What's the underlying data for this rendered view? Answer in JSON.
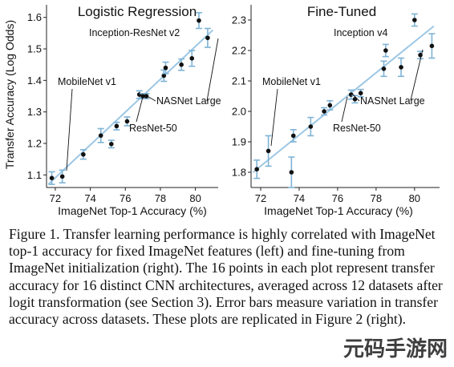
{
  "chart_data": [
    {
      "type": "scatter",
      "title": "Logistic Regression",
      "xlabel": "ImageNet Top-1 Accuracy (%)",
      "ylabel": "Transfer Accuracy (Log Odds)",
      "xlim": [
        71.5,
        81.3
      ],
      "ylim": [
        1.06,
        1.64
      ],
      "xticks": [
        72,
        74,
        76,
        78,
        80
      ],
      "yticks": [
        1.1,
        1.2,
        1.3,
        1.4,
        1.5,
        1.6
      ],
      "ytick_labels": [
        "1.1",
        "1.2",
        "1.3",
        "1.4",
        "1.5",
        "1.6"
      ],
      "grid": false,
      "fit_line": {
        "x": [
          71.6,
          81.0
        ],
        "y": [
          1.07,
          1.56
        ]
      },
      "points": [
        {
          "x": 71.8,
          "y": 1.09,
          "err": 0.02
        },
        {
          "x": 72.4,
          "y": 1.095,
          "err": 0.02
        },
        {
          "x": 73.6,
          "y": 1.165,
          "err": 0.015
        },
        {
          "x": 74.6,
          "y": 1.225,
          "err": 0.022
        },
        {
          "x": 75.2,
          "y": 1.198,
          "err": 0.012
        },
        {
          "x": 75.5,
          "y": 1.255,
          "err": 0.012
        },
        {
          "x": 76.1,
          "y": 1.27,
          "err": 0.014
        },
        {
          "x": 76.8,
          "y": 1.355,
          "err": 0.012
        },
        {
          "x": 77.0,
          "y": 1.35,
          "err": 0.008
        },
        {
          "x": 77.2,
          "y": 1.35,
          "err": 0.008
        },
        {
          "x": 78.2,
          "y": 1.415,
          "err": 0.018
        },
        {
          "x": 78.3,
          "y": 1.44,
          "err": 0.018
        },
        {
          "x": 79.2,
          "y": 1.45,
          "err": 0.018
        },
        {
          "x": 79.8,
          "y": 1.47,
          "err": 0.025
        },
        {
          "x": 80.2,
          "y": 1.59,
          "err": 0.025
        },
        {
          "x": 80.7,
          "y": 1.535,
          "err": 0.03
        }
      ],
      "annotations": [
        {
          "text": "Inception-ResNet v2"
        },
        {
          "text": "MobileNet v1"
        },
        {
          "text": "NASNet Large"
        },
        {
          "text": "ResNet-50"
        }
      ]
    },
    {
      "type": "scatter",
      "title": "Fine-Tuned",
      "xlabel": "ImageNet Top-1 Accuracy (%)",
      "ylabel": "",
      "xlim": [
        71.5,
        81.3
      ],
      "ylim": [
        1.75,
        2.35
      ],
      "xticks": [
        72,
        74,
        76,
        78,
        80
      ],
      "yticks": [
        1.8,
        1.9,
        2.0,
        2.1,
        2.2,
        2.3
      ],
      "ytick_labels": [
        "1.8",
        "1.9",
        "2.0",
        "2.1",
        "2.2",
        "2.3"
      ],
      "grid": false,
      "fit_line": {
        "x": [
          71.6,
          81.0
        ],
        "y": [
          1.8,
          2.28
        ]
      },
      "points": [
        {
          "x": 71.8,
          "y": 1.81,
          "err": 0.03
        },
        {
          "x": 72.4,
          "y": 1.87,
          "err": 0.05
        },
        {
          "x": 73.6,
          "y": 1.8,
          "err": 0.05
        },
        {
          "x": 73.7,
          "y": 1.92,
          "err": 0.02
        },
        {
          "x": 74.6,
          "y": 1.95,
          "err": 0.03
        },
        {
          "x": 75.3,
          "y": 2.0,
          "err": 0.012
        },
        {
          "x": 75.6,
          "y": 2.02,
          "err": 0.015
        },
        {
          "x": 76.7,
          "y": 2.055,
          "err": 0.015
        },
        {
          "x": 76.9,
          "y": 2.04,
          "err": 0.012
        },
        {
          "x": 77.2,
          "y": 2.06,
          "err": 0.012
        },
        {
          "x": 78.4,
          "y": 2.14,
          "err": 0.025
        },
        {
          "x": 78.5,
          "y": 2.2,
          "err": 0.02
        },
        {
          "x": 79.3,
          "y": 2.145,
          "err": 0.03
        },
        {
          "x": 80.0,
          "y": 2.3,
          "err": 0.02
        },
        {
          "x": 80.3,
          "y": 2.185,
          "err": 0.012
        },
        {
          "x": 80.9,
          "y": 2.215,
          "err": 0.04
        }
      ],
      "annotations": [
        {
          "text": "Inception v4"
        },
        {
          "text": "MobileNet v1"
        },
        {
          "text": "NASNet Large"
        },
        {
          "text": "ResNet-50"
        }
      ]
    }
  ],
  "caption": "Figure 1. Transfer learning performance is highly correlated with ImageNet top-1 accuracy for fixed ImageNet features (left) and fine-tuning from ImageNet initialization (right). The 16 points in each plot represent transfer accuracy for 16 distinct CNN architectures, averaged across 12 datasets after logit transformation (see Section 3). Error bars measure variation in transfer accuracy across datasets. These plots are replicated in Figure 2 (right).",
  "watermark": "元码手游网",
  "colors": {
    "fit_line": "#9cc7e4",
    "error_bars": "#7fb3d6",
    "points": "#111111"
  }
}
